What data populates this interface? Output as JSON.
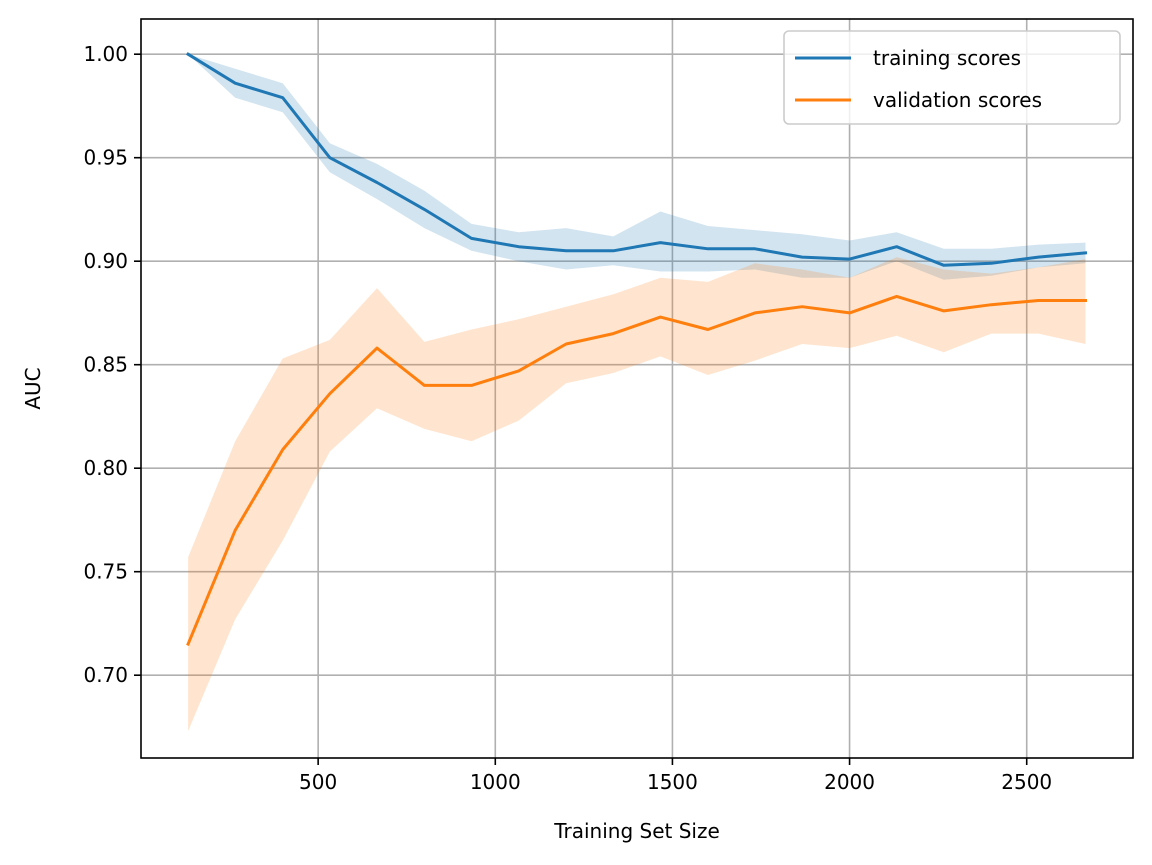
{
  "chart_data": {
    "type": "line",
    "title": "",
    "xlabel": "Training Set Size",
    "ylabel": "AUC",
    "xlim": [
      0,
      2800
    ],
    "ylim": [
      0.66,
      1.017
    ],
    "xticks": [
      500,
      1000,
      1500,
      2000,
      2500
    ],
    "yticks": [
      0.7,
      0.75,
      0.8,
      0.85,
      0.9,
      0.95,
      1.0
    ],
    "xtick_labels": [
      "500",
      "1000",
      "1500",
      "2000",
      "2500"
    ],
    "ytick_labels": [
      "0.70",
      "0.75",
      "0.80",
      "0.85",
      "0.90",
      "0.95",
      "1.00"
    ],
    "grid": true,
    "legend_position": "top-right",
    "x": [
      133,
      266,
      400,
      533,
      666,
      800,
      933,
      1066,
      1200,
      1333,
      1466,
      1600,
      1733,
      1866,
      2000,
      2133,
      2266,
      2400,
      2533,
      2666
    ],
    "series": [
      {
        "name": "training scores",
        "color": "#1f77b4",
        "band_color": "#1f77b4",
        "values": [
          1.0,
          0.986,
          0.979,
          0.95,
          0.938,
          0.925,
          0.911,
          0.907,
          0.905,
          0.905,
          0.909,
          0.906,
          0.906,
          0.902,
          0.901,
          0.907,
          0.898,
          0.899,
          0.902,
          0.904
        ],
        "upper": [
          1.0,
          0.993,
          0.986,
          0.957,
          0.947,
          0.934,
          0.918,
          0.914,
          0.916,
          0.912,
          0.924,
          0.917,
          0.915,
          0.913,
          0.91,
          0.914,
          0.906,
          0.906,
          0.908,
          0.909
        ],
        "lower": [
          1.0,
          0.979,
          0.972,
          0.943,
          0.93,
          0.916,
          0.905,
          0.9,
          0.896,
          0.898,
          0.895,
          0.895,
          0.896,
          0.892,
          0.892,
          0.9,
          0.891,
          0.893,
          0.897,
          0.899
        ]
      },
      {
        "name": "validation scores",
        "color": "#ff7f0e",
        "band_color": "#ff7f0e",
        "values": [
          0.715,
          0.77,
          0.809,
          0.836,
          0.858,
          0.84,
          0.84,
          0.847,
          0.86,
          0.865,
          0.873,
          0.867,
          0.875,
          0.878,
          0.875,
          0.883,
          0.876,
          0.879,
          0.881,
          0.881
        ],
        "upper": [
          0.757,
          0.813,
          0.853,
          0.862,
          0.887,
          0.861,
          0.867,
          0.872,
          0.878,
          0.884,
          0.892,
          0.89,
          0.899,
          0.896,
          0.892,
          0.902,
          0.896,
          0.894,
          0.897,
          0.901
        ],
        "lower": [
          0.673,
          0.727,
          0.765,
          0.808,
          0.829,
          0.819,
          0.813,
          0.823,
          0.841,
          0.846,
          0.854,
          0.845,
          0.852,
          0.86,
          0.858,
          0.864,
          0.856,
          0.865,
          0.865,
          0.86
        ]
      }
    ]
  }
}
